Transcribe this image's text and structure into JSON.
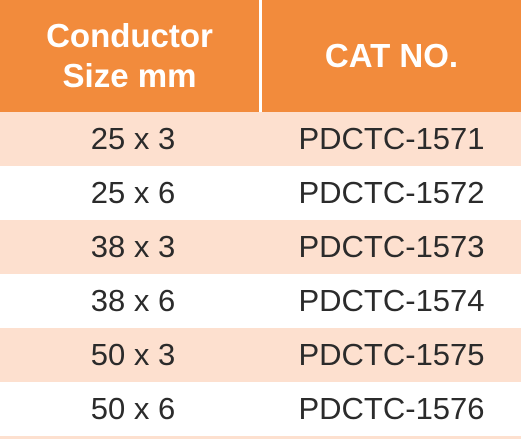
{
  "header": {
    "columns": [
      {
        "lines": [
          "Conductor",
          "Size mm"
        ]
      },
      {
        "lines": [
          "CAT NO."
        ]
      }
    ]
  },
  "table": {
    "rows": [
      [
        "25 x 3",
        "PDCTC-1571"
      ],
      [
        "25 x 6",
        "PDCTC-1572"
      ],
      [
        "38 x 3",
        "PDCTC-1573"
      ],
      [
        "38 x 6",
        "PDCTC-1574"
      ],
      [
        "50 x 3",
        "PDCTC-1575"
      ],
      [
        "50 x 6",
        "PDCTC-1576"
      ]
    ]
  }
}
